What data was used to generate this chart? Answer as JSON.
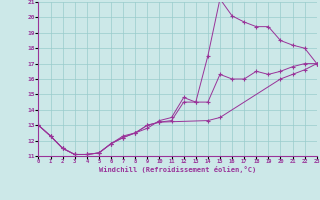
{
  "xlabel": "Windchill (Refroidissement éolien,°C)",
  "bg_color": "#cce8e8",
  "grid_color": "#99cccc",
  "line_color": "#993399",
  "xmin": 0,
  "xmax": 23,
  "ymin": 11,
  "ymax": 21,
  "line1_x": [
    0,
    1,
    2,
    3,
    4,
    5,
    6,
    7,
    8,
    9,
    10,
    11,
    12,
    13,
    14,
    15,
    16,
    17,
    18,
    19,
    20,
    21,
    22,
    23
  ],
  "line1_y": [
    13.0,
    12.3,
    11.5,
    11.1,
    11.1,
    11.2,
    11.8,
    12.2,
    12.5,
    13.0,
    13.2,
    13.3,
    14.5,
    14.5,
    17.5,
    21.2,
    20.1,
    19.7,
    19.4,
    19.4,
    18.5,
    18.2,
    18.0,
    17.0
  ],
  "line2_x": [
    0,
    1,
    2,
    3,
    4,
    5,
    6,
    7,
    8,
    9,
    10,
    11,
    12,
    13,
    14,
    15,
    16,
    17,
    18,
    19,
    20,
    21,
    22,
    23
  ],
  "line2_y": [
    13.0,
    12.3,
    11.5,
    11.1,
    11.1,
    11.2,
    11.8,
    12.3,
    12.5,
    12.8,
    13.3,
    13.5,
    14.8,
    14.5,
    14.5,
    16.3,
    16.0,
    16.0,
    16.5,
    16.3,
    16.5,
    16.8,
    17.0,
    17.0
  ],
  "line3_x": [
    0,
    1,
    2,
    3,
    4,
    5,
    6,
    7,
    8,
    9,
    10,
    14,
    15,
    20,
    21,
    22,
    23
  ],
  "line3_y": [
    13.0,
    12.3,
    11.5,
    11.1,
    11.1,
    11.2,
    11.8,
    12.2,
    12.5,
    13.0,
    13.2,
    13.3,
    13.5,
    16.0,
    16.3,
    16.6,
    17.0
  ]
}
